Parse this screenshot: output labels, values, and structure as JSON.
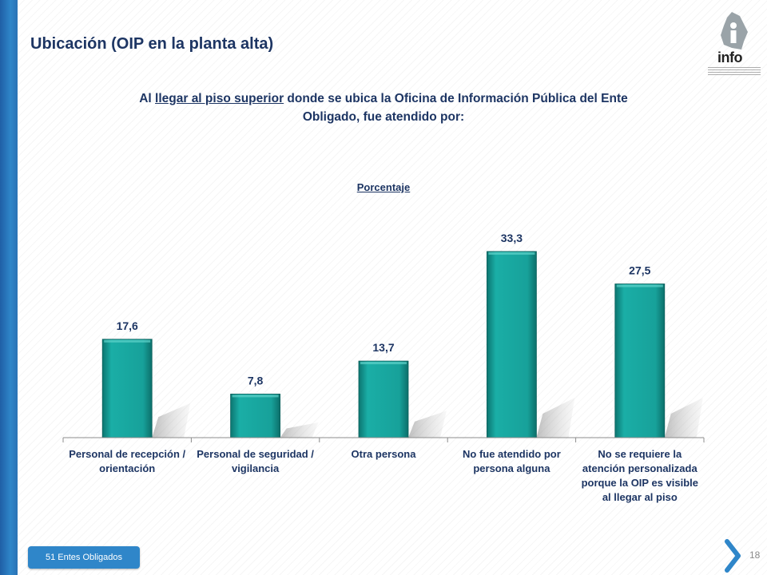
{
  "page": {
    "title": "Ubicación (OIP en la planta alta)",
    "question_part1": "Al ",
    "question_underlined": "llegar al piso superior",
    "question_part2": " donde se ubica la Oficina de Información Pública del Ente Obligado, fue atendido por:",
    "logo_text": "info",
    "badge": "51 Entes Obligados",
    "page_number": "18"
  },
  "chart_data": {
    "type": "bar",
    "title": "",
    "subtitle": "Porcentaje",
    "categories": [
      "Personal de recepción / orientación",
      "Personal de seguridad / vigilancia",
      "Otra persona",
      "No fue atendido por persona alguna",
      "No se requiere la atención personalizada porque la OIP es visible al llegar al piso"
    ],
    "values": [
      17.6,
      7.8,
      13.7,
      33.3,
      27.5
    ],
    "labels": [
      "17,6",
      "7,8",
      "13,7",
      "33,3",
      "27,5"
    ],
    "ylim": [
      0,
      40
    ],
    "grid": false,
    "bar_color": "#16a29a"
  }
}
